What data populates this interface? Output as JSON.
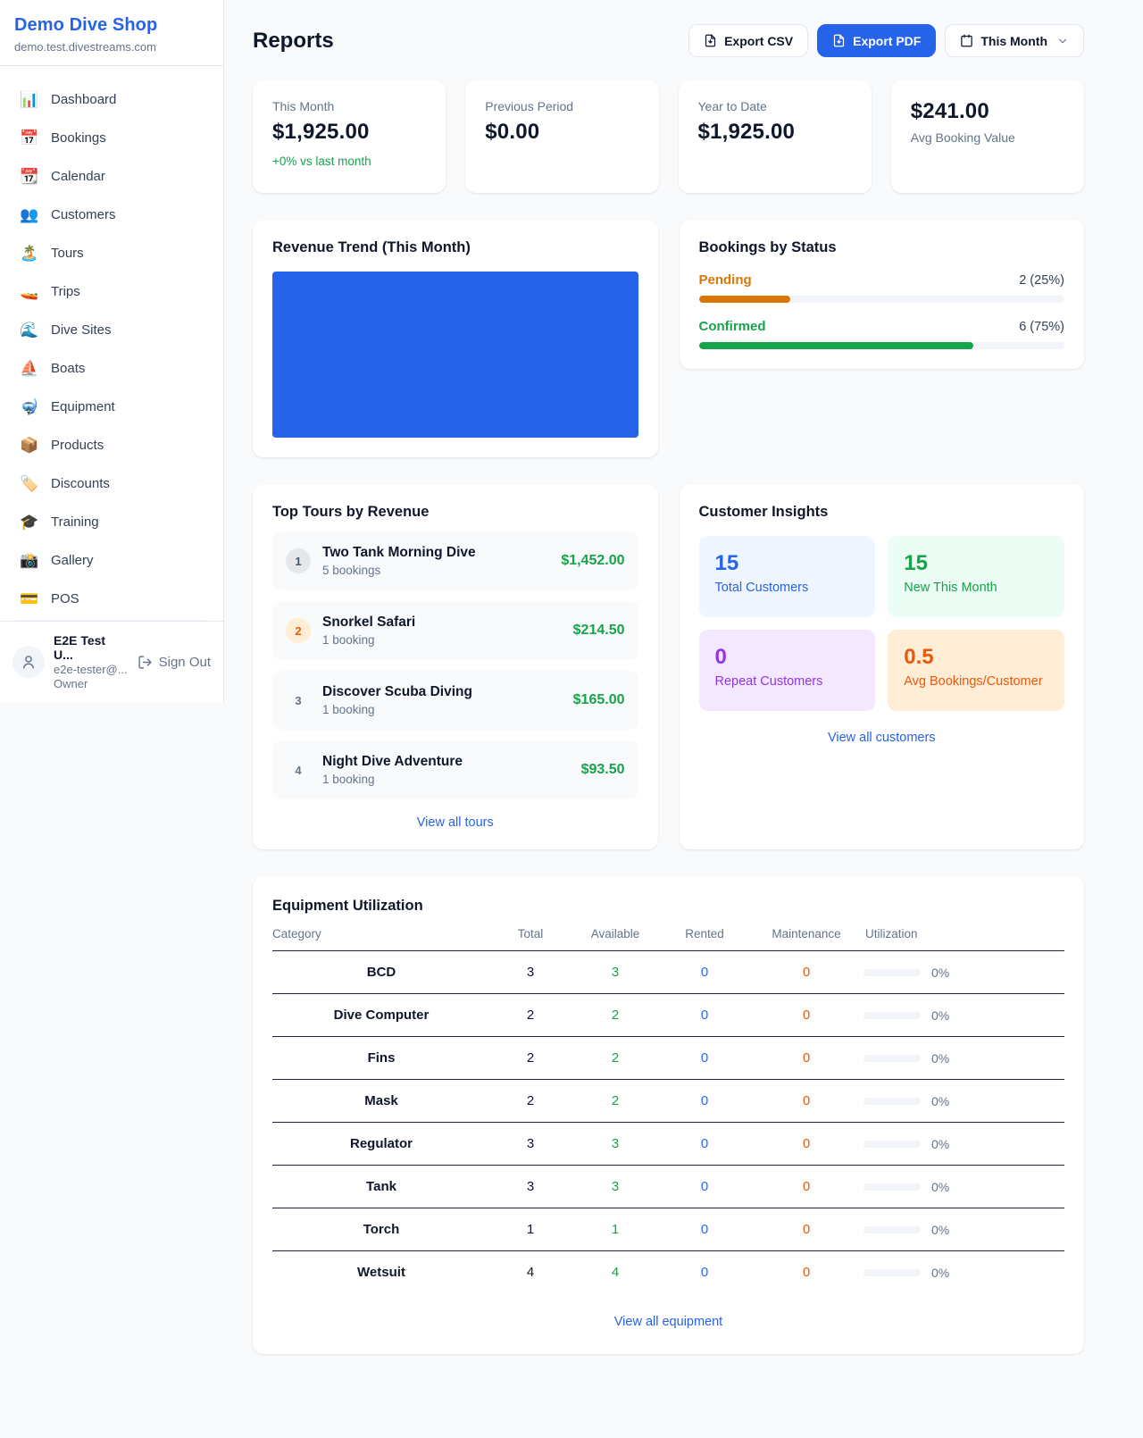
{
  "colors": {
    "accent": "#2563eb",
    "green": "#16a34a",
    "pending_orange": "#d97706",
    "maintenance_orange": "#ea580c",
    "purple": "#9333ea",
    "chart_blue": "#2563eb"
  },
  "sidebar": {
    "shop_name": "Demo Dive Shop",
    "shop_domain": "demo.test.divestreams.com",
    "items": [
      {
        "label": "Dashboard",
        "icon": "📊"
      },
      {
        "label": "Bookings",
        "icon": "📅"
      },
      {
        "label": "Calendar",
        "icon": "📆"
      },
      {
        "label": "Customers",
        "icon": "👥"
      },
      {
        "label": "Tours",
        "icon": "🏝️"
      },
      {
        "label": "Trips",
        "icon": "🚤"
      },
      {
        "label": "Dive Sites",
        "icon": "🌊"
      },
      {
        "label": "Boats",
        "icon": "⛵"
      },
      {
        "label": "Equipment",
        "icon": "🤿"
      },
      {
        "label": "Products",
        "icon": "📦"
      },
      {
        "label": "Discounts",
        "icon": "🏷️"
      },
      {
        "label": "Training",
        "icon": "🎓"
      },
      {
        "label": "Gallery",
        "icon": "📸"
      },
      {
        "label": "POS",
        "icon": "💳"
      }
    ],
    "user": {
      "name": "E2E Test U...",
      "email": "e2e-tester@...",
      "role": "Owner",
      "sign_out_label": "Sign Out"
    }
  },
  "header": {
    "title": "Reports",
    "export_csv_label": "Export CSV",
    "export_pdf_label": "Export PDF",
    "period_label": "This Month"
  },
  "stats": [
    {
      "label": "This Month",
      "value": "$1,925.00",
      "delta": "+0% vs last month"
    },
    {
      "label": "Previous Period",
      "value": "$0.00"
    },
    {
      "label": "Year to Date",
      "value": "$1,925.00"
    },
    {
      "value": "$241.00",
      "label": "Avg Booking Value"
    }
  ],
  "revenue_trend": {
    "title": "Revenue Trend (This Month)"
  },
  "bookings_status": {
    "title": "Bookings by Status",
    "rows": [
      {
        "label": "Pending",
        "value": "2 (25%)",
        "pct": 25
      },
      {
        "label": "Confirmed",
        "value": "6 (75%)",
        "pct": 75
      }
    ]
  },
  "top_tours": {
    "title": "Top Tours by Revenue",
    "view_all": "View all tours",
    "rows": [
      {
        "rank": "1",
        "name": "Two Tank Morning Dive",
        "bookings": "5 bookings",
        "amount": "$1,452.00"
      },
      {
        "rank": "2",
        "name": "Snorkel Safari",
        "bookings": "1 booking",
        "amount": "$214.50"
      },
      {
        "rank": "3",
        "name": "Discover Scuba Diving",
        "bookings": "1 booking",
        "amount": "$165.00"
      },
      {
        "rank": "4",
        "name": "Night Dive Adventure",
        "bookings": "1 booking",
        "amount": "$93.50"
      }
    ]
  },
  "customer_insights": {
    "title": "Customer Insights",
    "view_all": "View all customers",
    "tiles": [
      {
        "value": "15",
        "label": "Total Customers"
      },
      {
        "value": "15",
        "label": "New This Month"
      },
      {
        "value": "0",
        "label": "Repeat Customers"
      },
      {
        "value": "0.5",
        "label": "Avg Bookings/Customer"
      }
    ]
  },
  "equipment": {
    "title": "Equipment Utilization",
    "view_all": "View all equipment",
    "columns": [
      "Category",
      "Total",
      "Available",
      "Rented",
      "Maintenance",
      "Utilization"
    ],
    "rows": [
      {
        "category": "BCD",
        "total": "3",
        "available": "3",
        "rented": "0",
        "maintenance": "0",
        "utilization": "0%",
        "pct": 0
      },
      {
        "category": "Dive Computer",
        "total": "2",
        "available": "2",
        "rented": "0",
        "maintenance": "0",
        "utilization": "0%",
        "pct": 0
      },
      {
        "category": "Fins",
        "total": "2",
        "available": "2",
        "rented": "0",
        "maintenance": "0",
        "utilization": "0%",
        "pct": 0
      },
      {
        "category": "Mask",
        "total": "2",
        "available": "2",
        "rented": "0",
        "maintenance": "0",
        "utilization": "0%",
        "pct": 0
      },
      {
        "category": "Regulator",
        "total": "3",
        "available": "3",
        "rented": "0",
        "maintenance": "0",
        "utilization": "0%",
        "pct": 0
      },
      {
        "category": "Tank",
        "total": "3",
        "available": "3",
        "rented": "0",
        "maintenance": "0",
        "utilization": "0%",
        "pct": 0
      },
      {
        "category": "Torch",
        "total": "1",
        "available": "1",
        "rented": "0",
        "maintenance": "0",
        "utilization": "0%",
        "pct": 0
      },
      {
        "category": "Wetsuit",
        "total": "4",
        "available": "4",
        "rented": "0",
        "maintenance": "0",
        "utilization": "0%",
        "pct": 0
      }
    ]
  }
}
